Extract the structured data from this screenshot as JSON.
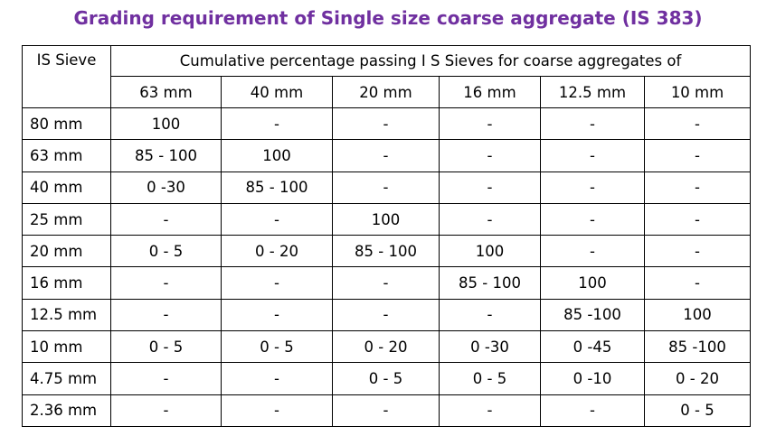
{
  "title": "Grading requirement of Single size coarse aggregate (IS 383)",
  "colors": {
    "title": "#7030a0",
    "grid": "#000000",
    "text": "#000000"
  },
  "table": {
    "corner_header": "IS Sieve",
    "group_header": "Cumulative percentage passing  I S Sieves for coarse aggregates of",
    "columns": [
      "63 mm",
      "40 mm",
      "20 mm",
      "16 mm",
      "12.5 mm",
      "10 mm"
    ],
    "rows": [
      {
        "sieve": "80 mm",
        "values": [
          "100",
          "-",
          "-",
          "-",
          "-",
          "-"
        ]
      },
      {
        "sieve": "63 mm",
        "values": [
          "85 - 100",
          "100",
          "-",
          "-",
          "-",
          "-"
        ]
      },
      {
        "sieve": "40 mm",
        "values": [
          "0 -30",
          "85 - 100",
          "-",
          "-",
          "-",
          "-"
        ]
      },
      {
        "sieve": "25 mm",
        "values": [
          "-",
          "-",
          "100",
          "-",
          "-",
          "-"
        ]
      },
      {
        "sieve": "20 mm",
        "values": [
          "0 - 5",
          "0 - 20",
          "85 - 100",
          "100",
          "-",
          "-"
        ]
      },
      {
        "sieve": "16 mm",
        "values": [
          "-",
          "-",
          "-",
          "85 - 100",
          "100",
          "-"
        ]
      },
      {
        "sieve": "12.5 mm",
        "values": [
          "-",
          "-",
          "-",
          "-",
          "85 -100",
          "100"
        ]
      },
      {
        "sieve": "10 mm",
        "values": [
          "0 - 5",
          "0 - 5",
          "0 - 20",
          "0 -30",
          "0 -45",
          "85 -100"
        ]
      },
      {
        "sieve": "4.75 mm",
        "values": [
          "-",
          "-",
          "0 - 5",
          "0 - 5",
          "0 -10",
          "0 - 20"
        ]
      },
      {
        "sieve": "2.36 mm",
        "values": [
          "-",
          "-",
          "-",
          "-",
          "-",
          "0 - 5"
        ]
      }
    ]
  }
}
